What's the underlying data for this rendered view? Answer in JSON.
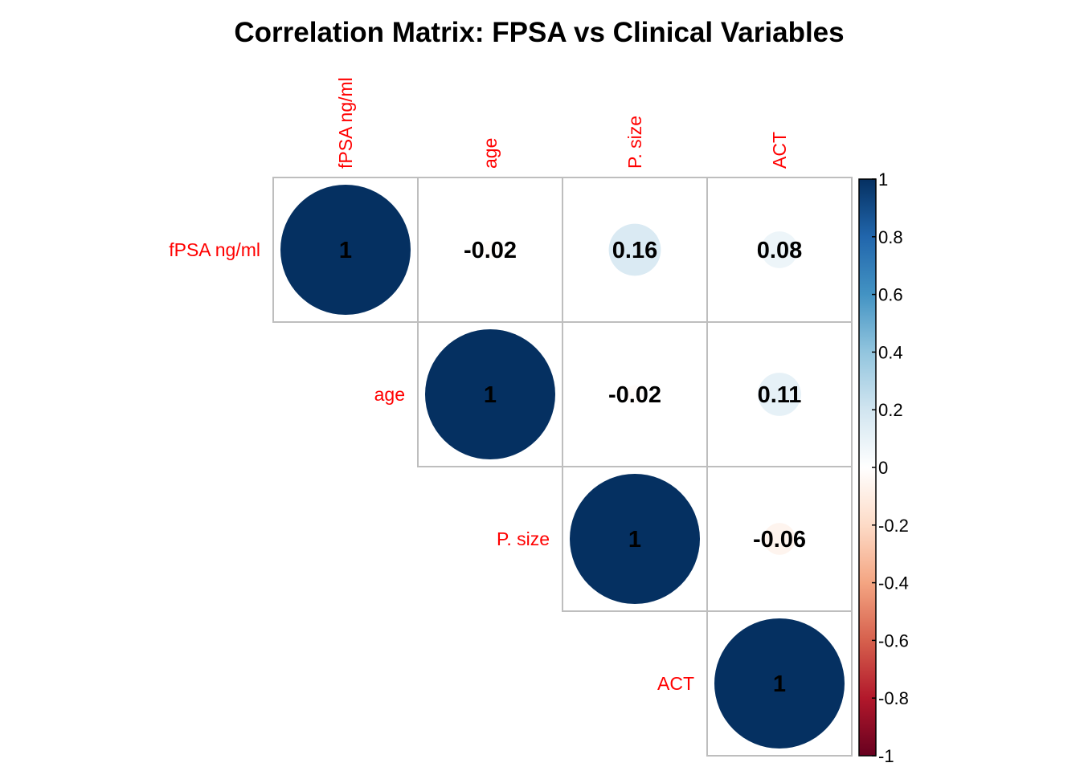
{
  "chart_data": {
    "type": "heatmap",
    "title": "Correlation Matrix: FPSA vs Clinical Variables",
    "variables": [
      "fPSA ng/ml",
      "age",
      "P. size",
      "ACT"
    ],
    "matrix": [
      [
        1,
        -0.02,
        0.16,
        0.08
      ],
      [
        null,
        1,
        -0.02,
        0.11
      ],
      [
        null,
        null,
        1,
        -0.06
      ],
      [
        null,
        null,
        null,
        1
      ]
    ],
    "value_labels": [
      [
        "1",
        "-0.02",
        "0.16",
        "0.08"
      ],
      [
        "",
        "1",
        "-0.02",
        "0.11"
      ],
      [
        "",
        "",
        "1",
        "-0.06"
      ],
      [
        "",
        "",
        "",
        "1"
      ]
    ],
    "display": "upper-triangle circles",
    "label_color": "#ff0000",
    "grid_color": "#bebebe",
    "colorbar": {
      "range": [
        -1,
        1
      ],
      "ticks": [
        "1",
        "0.8",
        "0.6",
        "0.4",
        "0.2",
        "0",
        "-0.2",
        "-0.4",
        "-0.6",
        "-0.8",
        "-1"
      ],
      "tick_values": [
        1,
        0.8,
        0.6,
        0.4,
        0.2,
        0,
        -0.2,
        -0.4,
        -0.6,
        -0.8,
        -1
      ],
      "colors": [
        "#67001F",
        "#B2182B",
        "#D6604D",
        "#F4A582",
        "#FDDBC7",
        "#FFFFFF",
        "#D1E5F0",
        "#92C5DE",
        "#4393C3",
        "#2166AC",
        "#053061"
      ]
    }
  }
}
